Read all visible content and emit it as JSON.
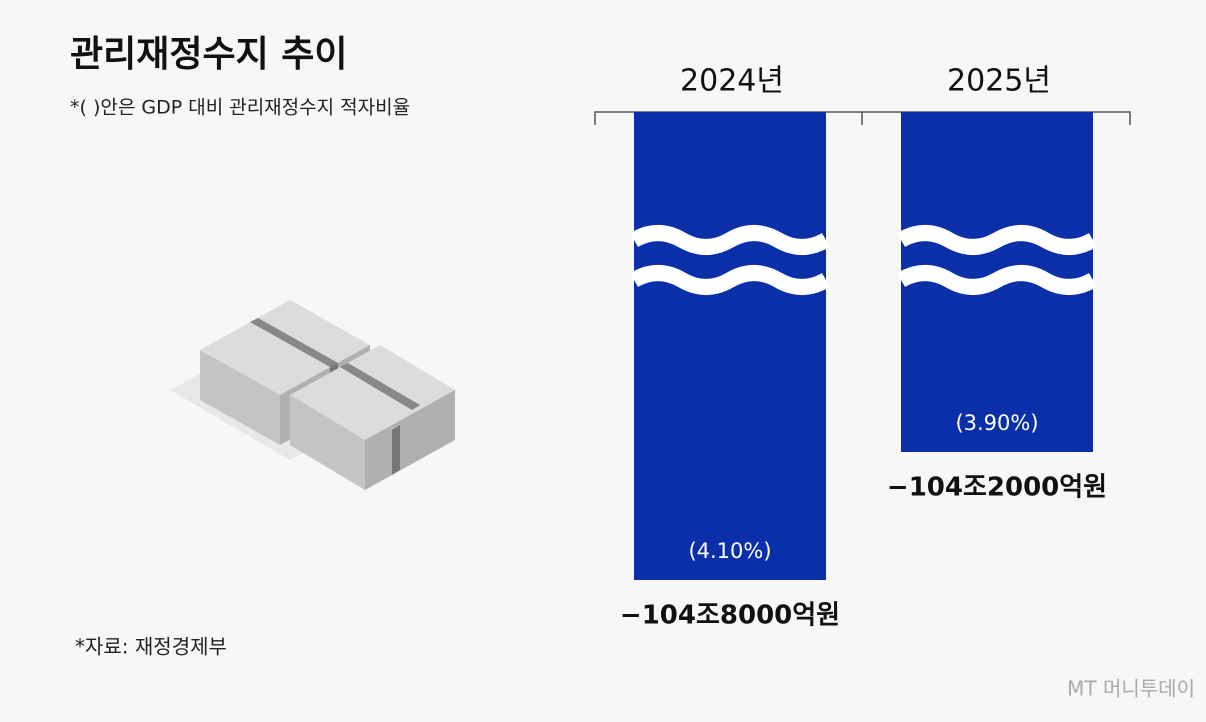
{
  "chart_data": {
    "type": "bar",
    "title": "관리재정수지 추이",
    "subtitle": "*( )안은 GDP 대비 관리재정수지 적자비율",
    "categories": [
      "2024년",
      "2025년"
    ],
    "values": [
      -1048000,
      -1042000
    ],
    "value_labels": [
      "−104조8000억원",
      "−104조2000억원"
    ],
    "ratio_labels": [
      "(4.10%)",
      "(3.90%)"
    ],
    "color": "#0a2fa8",
    "source": "*자료: 재정경제부",
    "watermark": "MT 머니투데이"
  }
}
